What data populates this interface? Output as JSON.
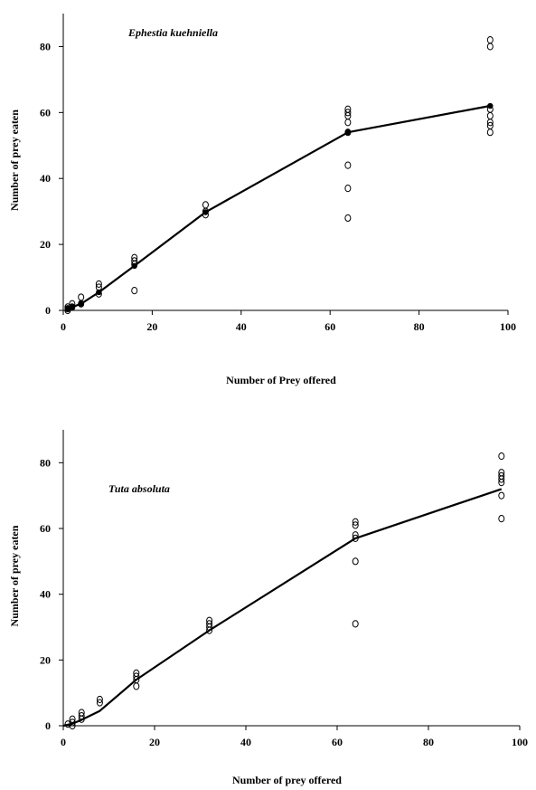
{
  "chart_data": [
    {
      "type": "scatter",
      "title": "Ephestia kuehniella",
      "xlabel": "Number of Prey offered",
      "ylabel": "Number of prey eaten",
      "xlim": [
        0,
        100
      ],
      "ylim": [
        0,
        90
      ],
      "xticks": [
        0,
        20,
        40,
        60,
        80,
        100
      ],
      "yticks": [
        0,
        20,
        40,
        60,
        80
      ],
      "xtick_labels": [
        "0",
        "20",
        "40",
        "60",
        "80",
        "100"
      ],
      "ytick_labels": [
        "0",
        "20",
        "40",
        "60",
        "80"
      ],
      "grid": false,
      "series": [
        {
          "kind": "observed",
          "marker": "open-circle",
          "points": [
            [
              1,
              0
            ],
            [
              1,
              0.5
            ],
            [
              1,
              1
            ],
            [
              2,
              1
            ],
            [
              2,
              2
            ],
            [
              4,
              2
            ],
            [
              4,
              4
            ],
            [
              8,
              5
            ],
            [
              8,
              7
            ],
            [
              8,
              8
            ],
            [
              16,
              6
            ],
            [
              16,
              14
            ],
            [
              16,
              15
            ],
            [
              16,
              16
            ],
            [
              32,
              29
            ],
            [
              32,
              30
            ],
            [
              32,
              32
            ],
            [
              64,
              28
            ],
            [
              64,
              37
            ],
            [
              64,
              44
            ],
            [
              64,
              54
            ],
            [
              64,
              57
            ],
            [
              64,
              59
            ],
            [
              64,
              60
            ],
            [
              64,
              61
            ],
            [
              96,
              54
            ],
            [
              96,
              56
            ],
            [
              96,
              57
            ],
            [
              96,
              59
            ],
            [
              96,
              61
            ],
            [
              96,
              80
            ],
            [
              96,
              82
            ]
          ]
        },
        {
          "kind": "fitted",
          "marker": "filled-circle",
          "points": [
            [
              1,
              0.5
            ],
            [
              2,
              1
            ],
            [
              4,
              2
            ],
            [
              8,
              5.5
            ],
            [
              16,
              13.5
            ],
            [
              32,
              29.8
            ],
            [
              64,
              54
            ],
            [
              96,
              62
            ]
          ]
        }
      ]
    },
    {
      "type": "scatter",
      "title": "Tuta absoluta",
      "xlabel": "Number of prey offered",
      "ylabel": "Number of prey eaten",
      "xlim": [
        0,
        100
      ],
      "ylim": [
        0,
        90
      ],
      "xticks": [
        0,
        20,
        40,
        60,
        80,
        100
      ],
      "yticks": [
        0,
        20,
        40,
        60,
        80
      ],
      "xtick_labels": [
        "0",
        "20",
        "40",
        "60",
        "80",
        "100"
      ],
      "ytick_labels": [
        "0",
        "20",
        "40",
        "60",
        "80"
      ],
      "grid": false,
      "series": [
        {
          "kind": "observed",
          "marker": "open-circle",
          "points": [
            [
              1,
              0.5
            ],
            [
              2,
              0
            ],
            [
              2,
              1
            ],
            [
              2,
              2
            ],
            [
              4,
              2
            ],
            [
              4,
              3
            ],
            [
              4,
              4
            ],
            [
              8,
              7
            ],
            [
              8,
              8
            ],
            [
              16,
              12
            ],
            [
              16,
              14
            ],
            [
              16,
              15
            ],
            [
              16,
              16
            ],
            [
              32,
              29
            ],
            [
              32,
              30
            ],
            [
              32,
              31
            ],
            [
              32,
              32
            ],
            [
              64,
              31
            ],
            [
              64,
              50
            ],
            [
              64,
              57
            ],
            [
              64,
              58
            ],
            [
              64,
              61
            ],
            [
              64,
              62
            ],
            [
              96,
              63
            ],
            [
              96,
              70
            ],
            [
              96,
              74
            ],
            [
              96,
              75
            ],
            [
              96,
              76
            ],
            [
              96,
              77
            ],
            [
              96,
              82
            ]
          ]
        },
        {
          "kind": "fitted",
          "marker": "none",
          "points": [
            [
              0,
              0
            ],
            [
              2,
              0.6
            ],
            [
              4,
              1.8
            ],
            [
              8,
              4.5
            ],
            [
              16,
              14
            ],
            [
              32,
              29
            ],
            [
              64,
              57
            ],
            [
              96,
              72
            ]
          ]
        }
      ]
    }
  ]
}
